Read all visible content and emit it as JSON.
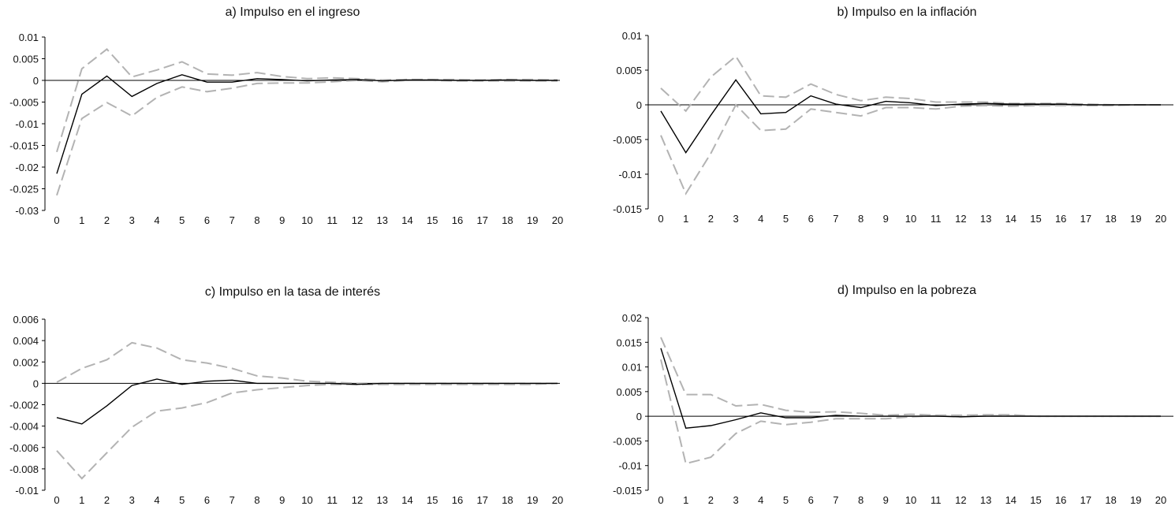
{
  "chart_data": [
    {
      "type": "line",
      "title": "a) Impulso en el ingreso",
      "x": [
        0,
        1,
        2,
        3,
        4,
        5,
        6,
        7,
        8,
        9,
        10,
        11,
        12,
        13,
        14,
        15,
        16,
        17,
        18,
        19,
        20
      ],
      "ylim": [
        -0.03,
        0.01
      ],
      "yticks": [
        "0.01",
        "0.005",
        "0",
        "-0.005",
        "-0.01",
        "-0.015",
        "-0.02",
        "-0.025",
        "-0.03"
      ],
      "ytick_values": [
        0.01,
        0.005,
        0,
        -0.005,
        -0.01,
        -0.015,
        -0.02,
        -0.025,
        -0.03
      ],
      "grid": false,
      "series": [
        {
          "style": "solid",
          "color": "#000000",
          "values": [
            -0.0215,
            -0.0032,
            0.001,
            -0.0037,
            -0.0007,
            0.0013,
            -0.0004,
            -0.0004,
            0.0004,
            0.0002,
            -0.0001,
            0.0001,
            0.0002,
            -0.0001,
            0.0001,
            0.0001,
            0,
            0,
            0.0001,
            0,
            0
          ]
        },
        {
          "style": "dashed",
          "color": "#b3b3b3",
          "values": [
            -0.0165,
            0.0027,
            0.0072,
            0.0008,
            0.0024,
            0.0043,
            0.0015,
            0.0012,
            0.0018,
            0.0009,
            0.0004,
            0.0006,
            0.0004,
            0.0001,
            0.0002,
            0.0002,
            0.0002,
            0.0001,
            0.0002,
            0.0002,
            0.0001
          ]
        },
        {
          "style": "dashed",
          "color": "#b3b3b3",
          "values": [
            -0.0265,
            -0.0088,
            -0.0051,
            -0.0082,
            -0.0039,
            -0.0015,
            -0.0026,
            -0.0018,
            -0.0007,
            -0.0006,
            -0.0006,
            -0.0003,
            0,
            -0.0003,
            0,
            0,
            -0.0001,
            -0.0001,
            -0.0001,
            -0.0001,
            -0.0001
          ]
        }
      ]
    },
    {
      "type": "line",
      "title": "b) Impulso en la inflación",
      "x": [
        0,
        1,
        2,
        3,
        4,
        5,
        6,
        7,
        8,
        9,
        10,
        11,
        12,
        13,
        14,
        15,
        16,
        17,
        18,
        19,
        20
      ],
      "ylim": [
        -0.015,
        0.01
      ],
      "yticks": [
        "0.01",
        "0.005",
        "0",
        "-0.005",
        "-0.01",
        "-0.015"
      ],
      "ytick_values": [
        0.01,
        0.005,
        0,
        -0.005,
        -0.01,
        -0.015
      ],
      "grid": false,
      "series": [
        {
          "style": "solid",
          "color": "#000000",
          "values": [
            -0.0009,
            -0.0069,
            -0.0015,
            0.0036,
            -0.0013,
            -0.0011,
            0.0013,
            0.0001,
            -0.0004,
            0.0005,
            0.0003,
            -0.0001,
            0.0001,
            0.0002,
            0.0001,
            0.0001,
            0.0001,
            0,
            0,
            0,
            0
          ]
        },
        {
          "style": "dashed",
          "color": "#b3b3b3",
          "values": [
            0.0024,
            -0.0009,
            0.004,
            0.007,
            0.0013,
            0.0011,
            0.003,
            0.0015,
            0.0006,
            0.0011,
            0.0009,
            0.0004,
            0.0004,
            0.0004,
            0.0002,
            0.0002,
            0.0002,
            0.0001,
            0,
            0,
            0
          ]
        },
        {
          "style": "dashed",
          "color": "#b3b3b3",
          "values": [
            -0.0044,
            -0.0128,
            -0.007,
            0,
            -0.0037,
            -0.0035,
            -0.0006,
            -0.0011,
            -0.0016,
            -0.0004,
            -0.0004,
            -0.0006,
            -0.0002,
            -0.0001,
            -0.0002,
            -0.0001,
            -0.0001,
            -0.0001,
            -0.0001,
            0,
            0
          ]
        }
      ]
    },
    {
      "type": "line",
      "title": "c) Impulso en la tasa de interés",
      "x": [
        0,
        1,
        2,
        3,
        4,
        5,
        6,
        7,
        8,
        9,
        10,
        11,
        12,
        13,
        14,
        15,
        16,
        17,
        18,
        19,
        20
      ],
      "ylim": [
        -0.01,
        0.006
      ],
      "yticks": [
        "0.006",
        "0.004",
        "0.002",
        "0",
        "-0.002",
        "-0.004",
        "-0.006",
        "-0.008",
        "-0.01"
      ],
      "ytick_values": [
        0.006,
        0.004,
        0.002,
        0,
        -0.002,
        -0.004,
        -0.006,
        -0.008,
        -0.01
      ],
      "grid": false,
      "series": [
        {
          "style": "solid",
          "color": "#000000",
          "values": [
            -0.0032,
            -0.0038,
            -0.0021,
            -0.0002,
            0.0004,
            -0.0001,
            0.0002,
            0.0003,
            0,
            0,
            0,
            0,
            -0.0001,
            0,
            0,
            0,
            0,
            0,
            0,
            0,
            0
          ]
        },
        {
          "style": "dashed",
          "color": "#b3b3b3",
          "values": [
            0.0001,
            0.0014,
            0.0022,
            0.0038,
            0.0033,
            0.0022,
            0.0019,
            0.0014,
            0.0007,
            0.0005,
            0.0002,
            0.0001,
            0,
            0,
            0,
            0,
            0,
            0,
            0,
            0,
            0
          ]
        },
        {
          "style": "dashed",
          "color": "#b3b3b3",
          "values": [
            -0.0063,
            -0.0089,
            -0.0065,
            -0.0041,
            -0.0026,
            -0.0023,
            -0.0018,
            -0.0009,
            -0.0006,
            -0.0004,
            -0.0002,
            -0.0001,
            -0.0001,
            -0.0001,
            -0.0001,
            -0.0001,
            -0.0001,
            -0.0001,
            -0.0001,
            -0.0001,
            0
          ]
        }
      ]
    },
    {
      "type": "line",
      "title": "d) Impulso en la pobreza",
      "x": [
        0,
        1,
        2,
        3,
        4,
        5,
        6,
        7,
        8,
        9,
        10,
        11,
        12,
        13,
        14,
        15,
        16,
        17,
        18,
        19,
        20
      ],
      "ylim": [
        -0.015,
        0.02
      ],
      "yticks": [
        "0.02",
        "0.015",
        "0.01",
        "0.005",
        "0",
        "-0.005",
        "-0.01",
        "-0.015"
      ],
      "ytick_values": [
        0.02,
        0.015,
        0.01,
        0.005,
        0,
        -0.005,
        -0.01,
        -0.015
      ],
      "grid": false,
      "series": [
        {
          "style": "solid",
          "color": "#000000",
          "values": [
            0.0138,
            -0.0024,
            -0.0019,
            -0.0007,
            0.0007,
            -0.0003,
            -0.0003,
            0.0002,
            0,
            0,
            0,
            0,
            -0.0001,
            0,
            0,
            0,
            0,
            0,
            0,
            0,
            0
          ]
        },
        {
          "style": "dashed",
          "color": "#b3b3b3",
          "values": [
            0.016,
            0.0044,
            0.0044,
            0.0021,
            0.0024,
            0.0012,
            0.0008,
            0.0009,
            0.0006,
            0.0002,
            0.0004,
            0.0002,
            0.0002,
            0.0003,
            0.0003,
            0,
            0,
            0,
            0,
            0,
            0
          ]
        },
        {
          "style": "dashed",
          "color": "#b3b3b3",
          "values": [
            0.0115,
            -0.0096,
            -0.0083,
            -0.0035,
            -0.001,
            -0.0017,
            -0.0012,
            -0.0005,
            -0.0005,
            -0.0005,
            -0.0001,
            0.0001,
            -0.0001,
            0.0001,
            0.0001,
            0,
            0,
            0,
            0,
            0,
            0
          ]
        }
      ]
    }
  ]
}
